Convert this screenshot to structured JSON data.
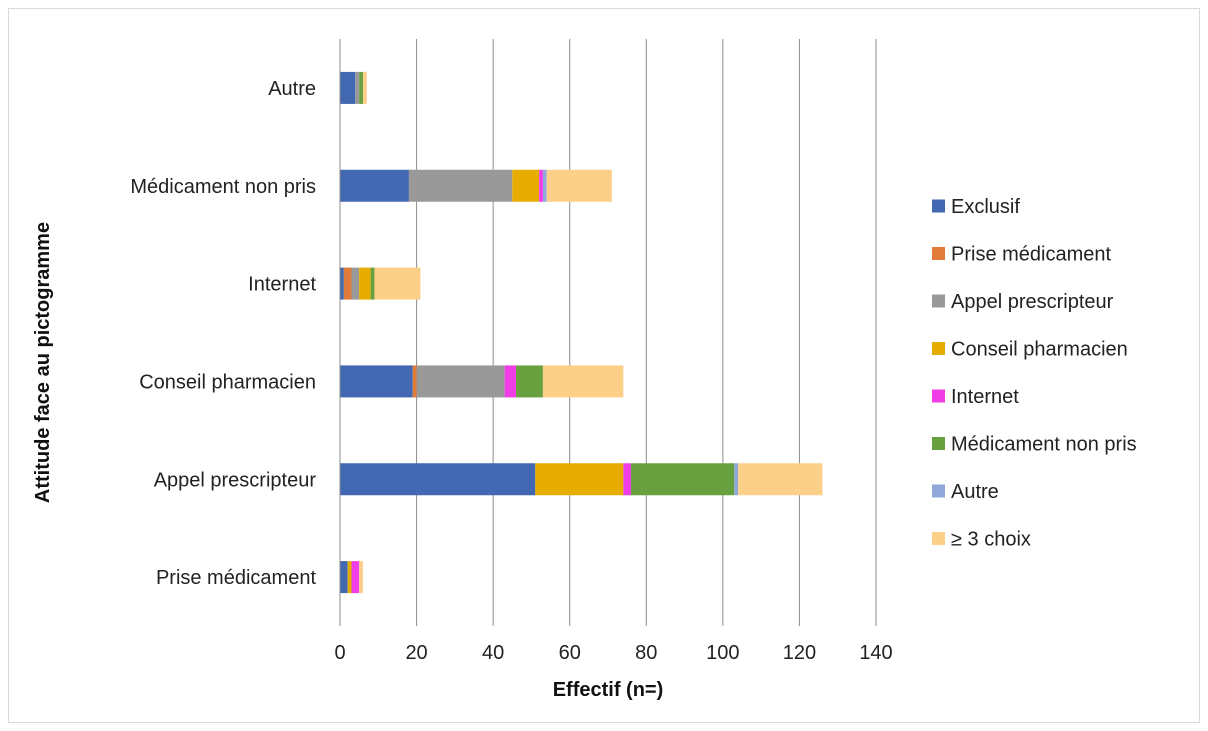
{
  "chart_data": {
    "type": "bar",
    "orientation": "horizontal",
    "stacked": true,
    "categories": [
      "Prise médicament",
      "Appel prescripteur",
      "Conseil pharmacien",
      "Internet",
      "Médicament non pris",
      "Autre"
    ],
    "series": [
      {
        "name": "Exclusif",
        "color": "#4168B0",
        "values": [
          2,
          51,
          19,
          1,
          18,
          4
        ]
      },
      {
        "name": "Prise médicament",
        "color": "#E07B39",
        "values": [
          0,
          0,
          1,
          2,
          0,
          0
        ]
      },
      {
        "name": "Appel prescripteur",
        "color": "#999999",
        "values": [
          0,
          0,
          23,
          2,
          27,
          1
        ]
      },
      {
        "name": "Conseil pharmacien",
        "color": "#E6AC00",
        "values": [
          1,
          23,
          0,
          3,
          7,
          0
        ]
      },
      {
        "name": "Internet",
        "color": "#F03EE6",
        "values": [
          2,
          2,
          3,
          0,
          1,
          0
        ]
      },
      {
        "name": "Médicament non pris",
        "color": "#69A03F",
        "values": [
          0,
          27,
          7,
          1,
          0,
          1
        ]
      },
      {
        "name": "Autre",
        "color": "#91A9DA",
        "values": [
          0,
          1,
          0,
          0,
          1,
          0
        ]
      },
      {
        "name": "≥ 3 choix",
        "color": "#FDD08A",
        "values": [
          1,
          22,
          21,
          12,
          17,
          1
        ]
      }
    ],
    "xlabel": "Effectif (n=)",
    "ylabel": "Attitude face au pictogramme",
    "xlim": [
      0,
      140
    ],
    "xticks": [
      "0",
      "20",
      "40",
      "60",
      "80",
      "100",
      "120",
      "140"
    ],
    "grid": "vertical",
    "legend": "right"
  }
}
